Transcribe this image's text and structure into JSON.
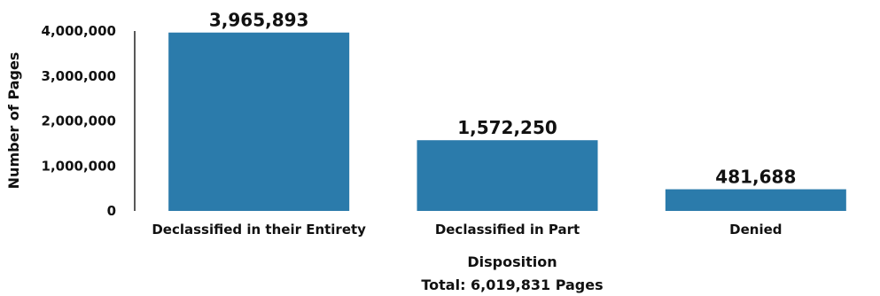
{
  "chart_data": {
    "type": "bar",
    "categories": [
      "Declassified in their Entirety",
      "Declassified in Part",
      "Denied"
    ],
    "values": [
      3965893,
      1572250,
      481688
    ],
    "value_labels": [
      "3,965,893",
      "1,572,250",
      "481,688"
    ],
    "xlabel": "Disposition",
    "subtitle": "Total:  6,019,831 Pages",
    "ylabel": "Number of Pages",
    "ylim": [
      0,
      4000000
    ],
    "yticks": [
      0,
      1000000,
      2000000,
      3000000,
      4000000
    ],
    "ytick_labels": [
      "0",
      "1,000,000",
      "2,000,000",
      "3,000,000",
      "4,000,000"
    ],
    "grid": false,
    "legend": "none",
    "bar_color": "#2b7bab"
  }
}
